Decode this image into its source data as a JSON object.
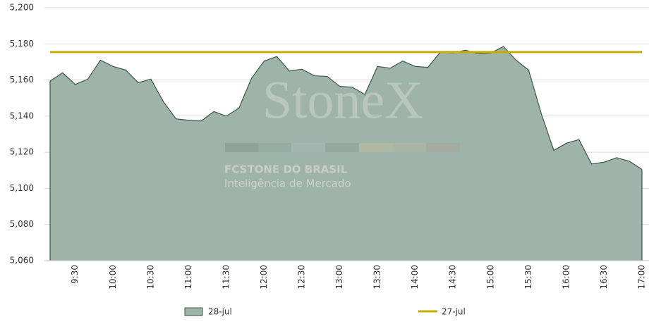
{
  "chart_data": {
    "type": "area",
    "watermark": {
      "brand": "StoneX",
      "company": "FCSTONE DO BRASIL",
      "tagline": "Inteligência de Mercado"
    },
    "categories": [
      null,
      null,
      "9:30",
      null,
      null,
      "10:00",
      null,
      null,
      "10:30",
      null,
      null,
      "11:00",
      null,
      null,
      "11:30",
      null,
      null,
      "12:00",
      null,
      null,
      "12:30",
      null,
      null,
      "13:00",
      null,
      null,
      "13:30",
      null,
      null,
      "14:00",
      null,
      null,
      "14:30",
      null,
      null,
      "15:00",
      null,
      null,
      "15:30",
      null,
      null,
      "16:00",
      null,
      null,
      "16:30",
      null,
      null,
      "17:00"
    ],
    "series": [
      {
        "name": "28-jul",
        "kind": "area",
        "color": "#9fb4a9",
        "line_color": "#3b5747",
        "values": [
          5159.4,
          5164,
          5157.5,
          5160.5,
          5171,
          5167.5,
          5165.5,
          5158.5,
          5160.5,
          5148,
          5138.5,
          5137.7,
          5137.3,
          5142.5,
          5140,
          5144.5,
          5161,
          5170.5,
          5173,
          5165,
          5166,
          5162.3,
          5162,
          5156.5,
          5156,
          5152,
          5167.5,
          5166.5,
          5170.5,
          5167.5,
          5167,
          5175.5,
          5175,
          5176.5,
          5174.5,
          5175,
          5178.5,
          5171,
          5165.5,
          5141.5,
          5121,
          5125,
          5127,
          5113.5,
          5114.5,
          5117,
          5115,
          5110.5
        ]
      },
      {
        "name": "27-jul",
        "kind": "line",
        "color": "#c6ad00",
        "values": [
          5175.5,
          5175.5,
          5175.5,
          5175.5,
          5175.5,
          5175.5,
          5175.5,
          5175.5,
          5175.5,
          5175.5,
          5175.5,
          5175.5,
          5175.5,
          5175.5,
          5175.5,
          5175.5,
          5175.5,
          5175.5,
          5175.5,
          5175.5,
          5175.5,
          5175.5,
          5175.5,
          5175.5,
          5175.5,
          5175.5,
          5175.5,
          5175.5,
          5175.5,
          5175.5,
          5175.5,
          5175.5,
          5175.5,
          5175.5,
          5175.5,
          5175.5,
          5175.5,
          5175.5,
          5175.5,
          5175.5,
          5175.5,
          5175.5,
          5175.5,
          5175.5,
          5175.5,
          5175.5,
          5175.5,
          5175.5
        ]
      }
    ],
    "ylim": [
      5060,
      5200
    ],
    "yticks": [
      {
        "value": 5060,
        "label": "5,060"
      },
      {
        "value": 5080,
        "label": "5,080"
      },
      {
        "value": 5100,
        "label": "5,100"
      },
      {
        "value": 5120,
        "label": "5,120"
      },
      {
        "value": 5140,
        "label": "5,140"
      },
      {
        "value": 5160,
        "label": "5,160"
      },
      {
        "value": 5180,
        "label": "5,180"
      },
      {
        "value": 5200,
        "label": "5,200"
      }
    ],
    "grid": true,
    "legend": "bottom"
  }
}
